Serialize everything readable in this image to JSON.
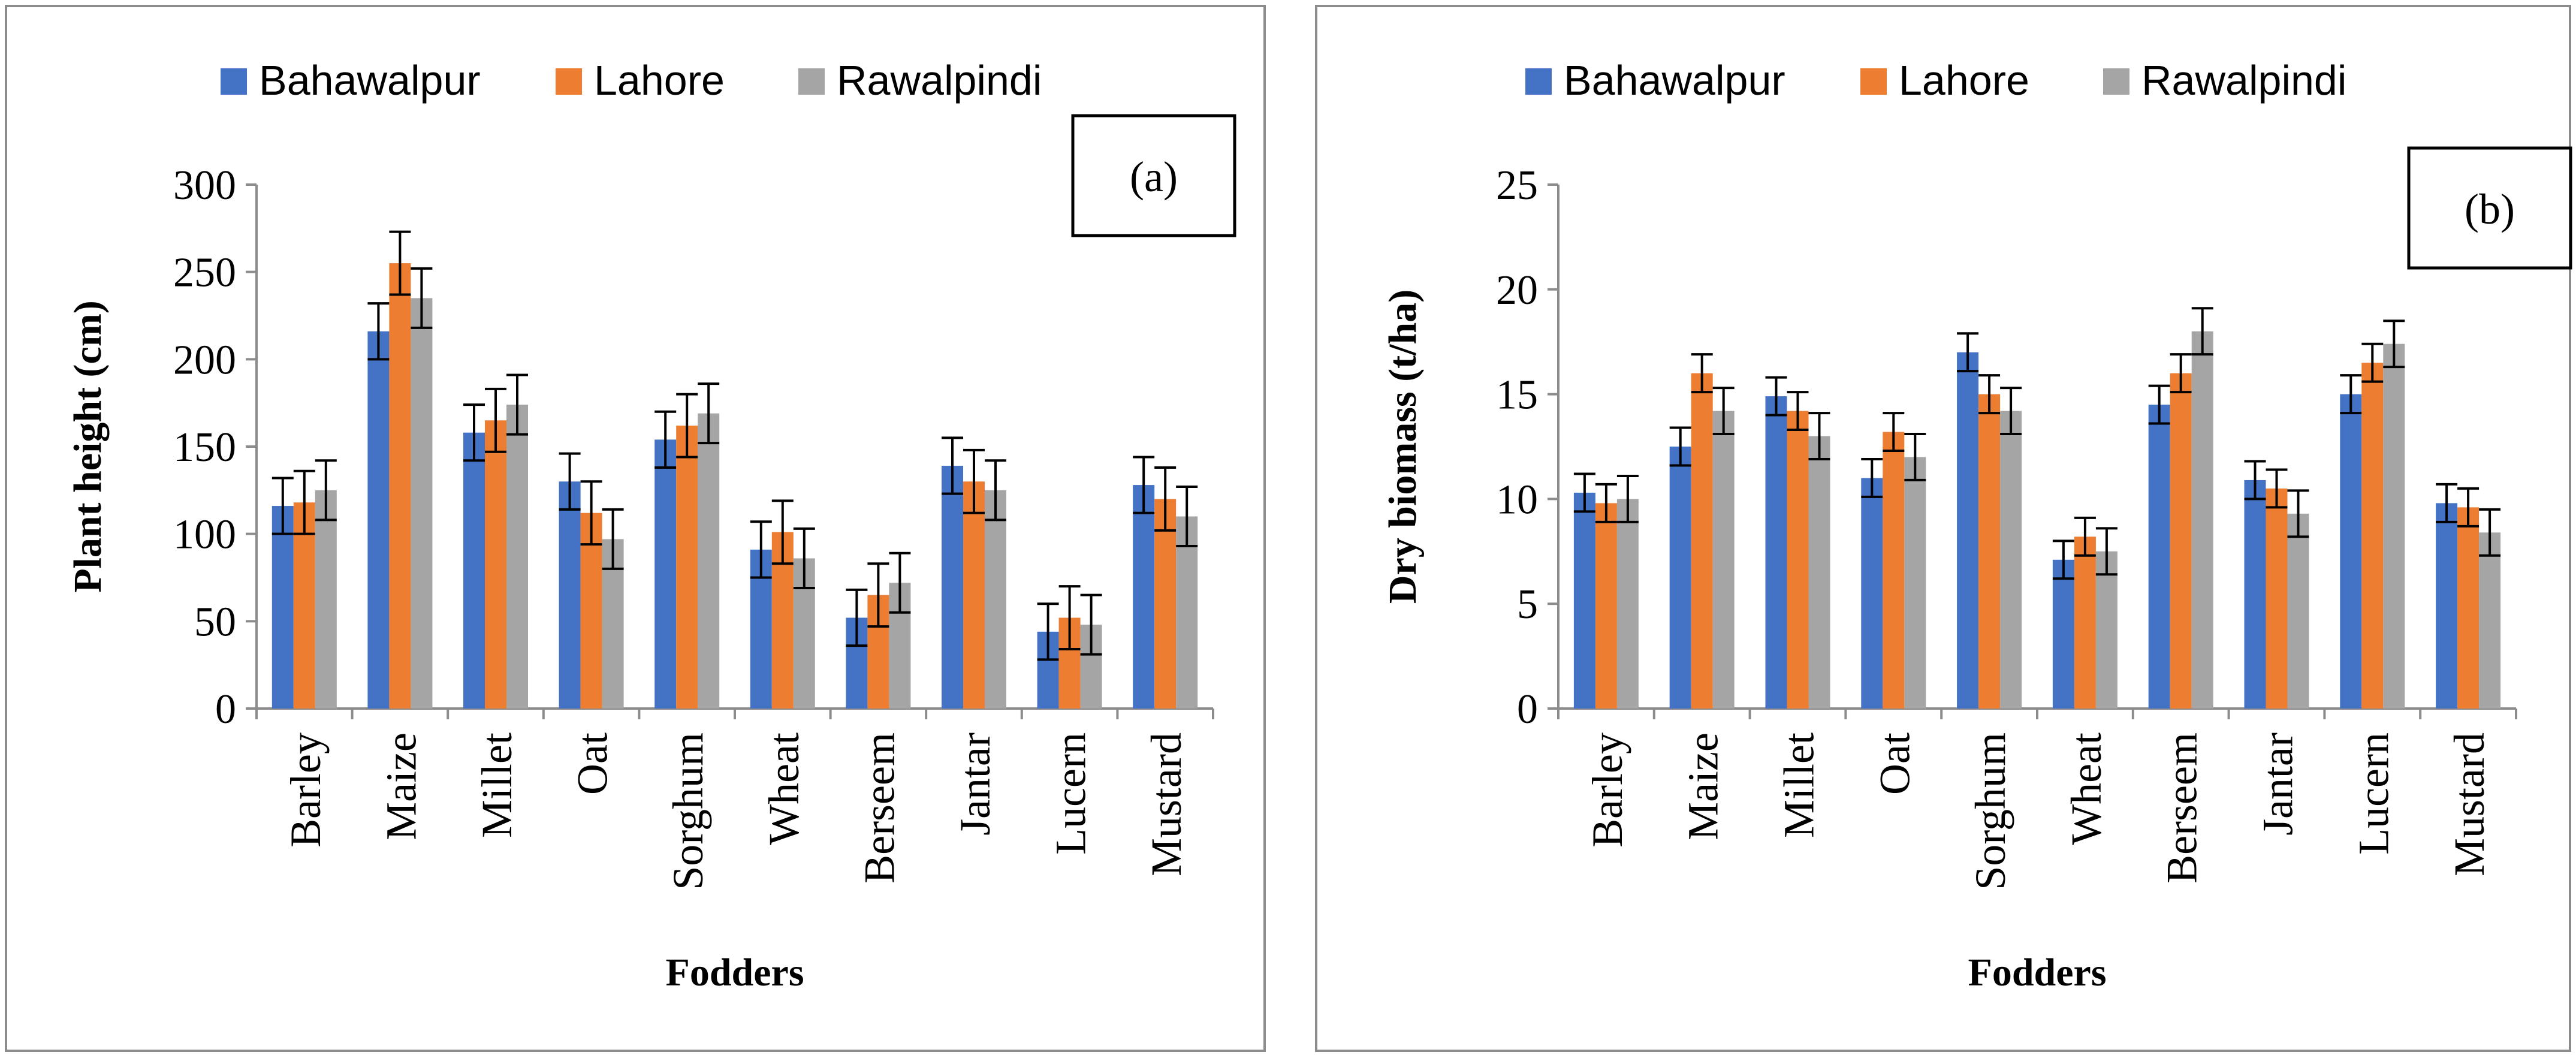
{
  "colors": {
    "Bahawalpur": "#4472c4",
    "Lahore": "#ed7d31",
    "Rawalpindi": "#a5a5a5",
    "axis": "#8c8c8c",
    "error_bar": "#000000"
  },
  "chart_data": [
    {
      "type": "bar",
      "panel_label": "(a)",
      "title": "",
      "xlabel": "Fodders",
      "ylabel": "Plant height (cm)",
      "ylim": [
        0,
        300
      ],
      "yticks": [
        0,
        50,
        100,
        150,
        200,
        250,
        300
      ],
      "legend_position": "top",
      "categories": [
        "Barley",
        "Maize",
        "Millet",
        "Oat",
        "Sorghum",
        "Wheat",
        "Berseem",
        "Jantar",
        "Lucern",
        "Mustard"
      ],
      "series": [
        {
          "name": "Bahawalpur",
          "values": [
            116,
            216,
            158,
            130,
            154,
            91,
            52,
            139,
            44,
            128
          ],
          "errors": [
            16,
            16,
            16,
            16,
            16,
            16,
            16,
            16,
            16,
            16
          ]
        },
        {
          "name": "Lahore",
          "values": [
            118,
            255,
            165,
            112,
            162,
            101,
            65,
            130,
            52,
            120
          ],
          "errors": [
            18,
            18,
            18,
            18,
            18,
            18,
            18,
            18,
            18,
            18
          ]
        },
        {
          "name": "Rawalpindi",
          "values": [
            125,
            235,
            174,
            97,
            169,
            86,
            72,
            125,
            48,
            110
          ],
          "errors": [
            17,
            17,
            17,
            17,
            17,
            17,
            17,
            17,
            17,
            17
          ]
        }
      ]
    },
    {
      "type": "bar",
      "panel_label": "(b)",
      "title": "",
      "xlabel": "Fodders",
      "ylabel": "Dry biomass (t/ha)",
      "ylim": [
        0,
        25
      ],
      "yticks": [
        0,
        5,
        10,
        15,
        20,
        25
      ],
      "legend_position": "top",
      "categories": [
        "Barley",
        "Maize",
        "Millet",
        "Oat",
        "Sorghum",
        "Wheat",
        "Berseem",
        "Jantar",
        "Lucern",
        "Mustard"
      ],
      "series": [
        {
          "name": "Bahawalpur",
          "values": [
            10.3,
            12.5,
            14.9,
            11,
            17,
            7.1,
            14.5,
            10.9,
            15,
            9.8
          ],
          "errors": [
            0.9,
            0.9,
            0.9,
            0.9,
            0.9,
            0.9,
            0.9,
            0.9,
            0.9,
            0.9
          ]
        },
        {
          "name": "Lahore",
          "values": [
            9.8,
            16,
            14.2,
            13.2,
            15,
            8.2,
            16,
            10.5,
            16.5,
            9.6
          ],
          "errors": [
            0.9,
            0.9,
            0.9,
            0.9,
            0.9,
            0.9,
            0.9,
            0.9,
            0.9,
            0.9
          ]
        },
        {
          "name": "Rawalpindi",
          "values": [
            10,
            14.2,
            13,
            12,
            14.2,
            7.5,
            18,
            9.3,
            17.4,
            8.4
          ],
          "errors": [
            1.1,
            1.1,
            1.1,
            1.1,
            1.1,
            1.1,
            1.1,
            1.1,
            1.1,
            1.1
          ]
        }
      ]
    }
  ]
}
